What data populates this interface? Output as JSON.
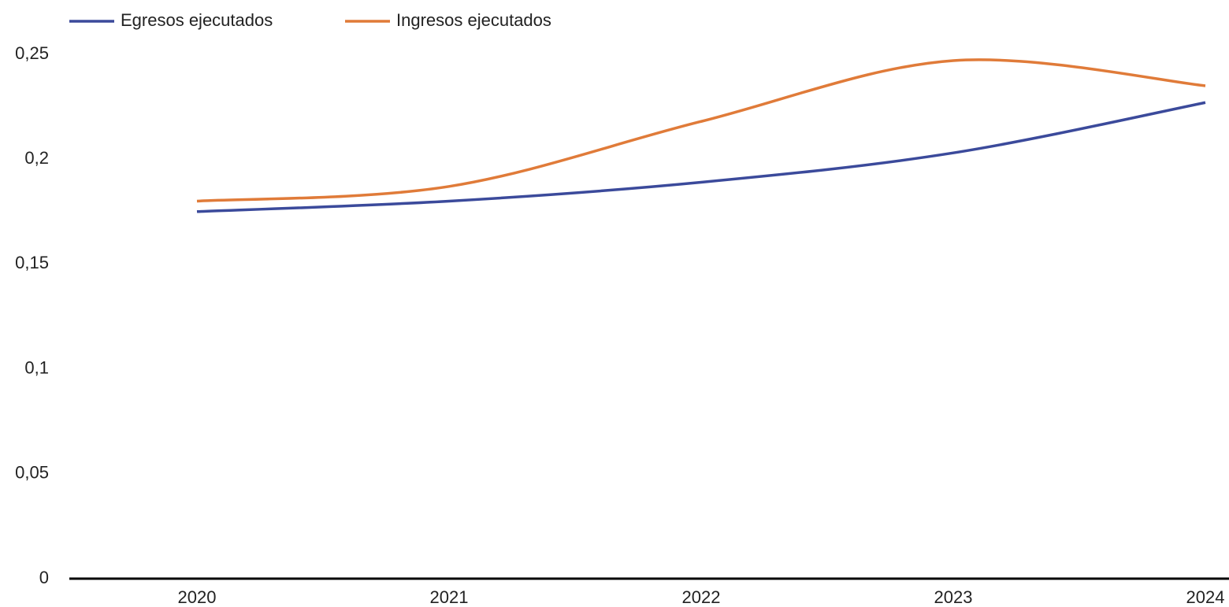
{
  "chart_data": {
    "type": "line",
    "categories": [
      "2020",
      "2021",
      "2022",
      "2023",
      "2024"
    ],
    "series": [
      {
        "name": "Egresos ejecutados",
        "color": "#3b4a9b",
        "values": [
          0.175,
          0.18,
          0.189,
          0.203,
          0.227
        ]
      },
      {
        "name": "Ingresos ejecutados",
        "color": "#e07b39",
        "values": [
          0.18,
          0.187,
          0.218,
          0.247,
          0.235
        ]
      }
    ],
    "ylim": [
      0,
      0.25
    ],
    "yticks": [
      0,
      {
        "value": 0.05,
        "label": "0,05"
      },
      {
        "value": 0.1,
        "label": "0,1"
      },
      {
        "value": 0.15,
        "label": "0,15"
      },
      {
        "value": 0.2,
        "label": "0,2"
      },
      {
        "value": 0.25,
        "label": "0,25"
      }
    ],
    "grid": false,
    "smooth": true,
    "legend": "top-left"
  }
}
